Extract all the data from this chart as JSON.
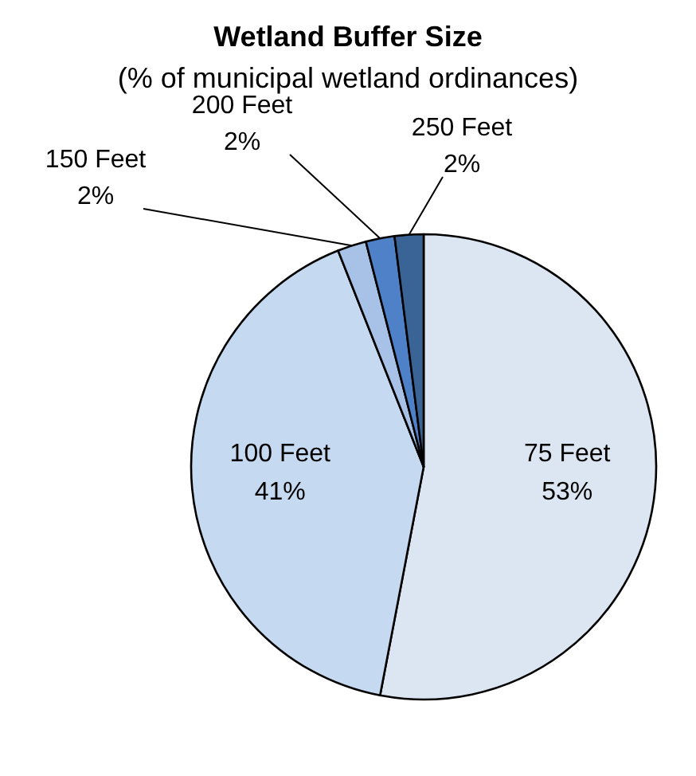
{
  "chart_data": {
    "type": "pie",
    "title": "Wetland Buffer Size",
    "subtitle": "(% of municipal wetland ordinances)",
    "categories": [
      "75 Feet",
      "100 Feet",
      "150 Feet",
      "200 Feet",
      "250 Feet"
    ],
    "values": [
      53,
      41,
      2,
      2,
      2
    ],
    "value_labels": [
      "53%",
      "41%",
      "2%",
      "2%",
      "2%"
    ],
    "colors": [
      "#dce6f2",
      "#c5d9f1",
      "#a7c2e6",
      "#4f81c8",
      "#3a6496"
    ],
    "legend": false
  }
}
